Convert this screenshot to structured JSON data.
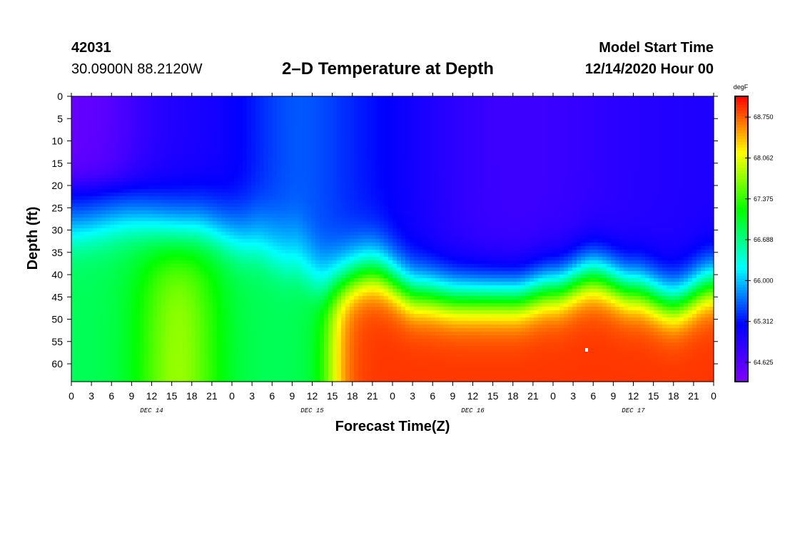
{
  "header": {
    "station_id": "42031",
    "location": "30.0900N 88.2120W",
    "title": "2–D Temperature at Depth",
    "start_label": "Model Start Time",
    "start_value": "12/14/2020 Hour 00"
  },
  "chart_data": {
    "type": "heatmap",
    "title": "2–D Temperature at Depth",
    "xlabel": "Forecast Time(Z)",
    "ylabel": "Depth (ft)",
    "x_range_hours": [
      0,
      96
    ],
    "y_range_ft": [
      0,
      64
    ],
    "x_tick_step_hours": 3,
    "x_tick_labels": [
      "0",
      "3",
      "6",
      "9",
      "12",
      "15",
      "18",
      "21",
      "0",
      "3",
      "6",
      "9",
      "12",
      "15",
      "18",
      "21",
      "0",
      "3",
      "6",
      "9",
      "12",
      "15",
      "18",
      "21",
      "0",
      "3",
      "6",
      "9",
      "12",
      "15",
      "18",
      "21",
      "0"
    ],
    "y_ticks": [
      0,
      5,
      10,
      15,
      20,
      25,
      30,
      35,
      40,
      45,
      50,
      55,
      60
    ],
    "date_labels": [
      {
        "label": "DEC 14",
        "hour": 12
      },
      {
        "label": "DEC 15",
        "hour": 36
      },
      {
        "label": "DEC 16",
        "hour": 60
      },
      {
        "label": "DEC 17",
        "hour": 84
      }
    ],
    "colorbar": {
      "unit": "degF",
      "min": 64.3,
      "max": 69.1,
      "tick_labels": [
        "68.750",
        "68.062",
        "67.375",
        "66.688",
        "66.000",
        "65.312",
        "64.625"
      ],
      "tick_values": [
        68.75,
        68.062,
        67.375,
        66.688,
        66.0,
        65.312,
        64.625
      ],
      "colors": [
        "#8000ff",
        "#0000ff",
        "#00ffff",
        "#00ff00",
        "#ffff00",
        "#ff0000"
      ]
    },
    "thermocline_depth_ft": [
      {
        "hour": 0,
        "depth": 29
      },
      {
        "hour": 9,
        "depth": 27
      },
      {
        "hour": 18,
        "depth": 28
      },
      {
        "hour": 27,
        "depth": 32
      },
      {
        "hour": 33,
        "depth": 36
      },
      {
        "hour": 38,
        "depth": 42
      },
      {
        "hour": 45,
        "depth": 39
      },
      {
        "hour": 52,
        "depth": 44
      },
      {
        "hour": 58,
        "depth": 45
      },
      {
        "hour": 66,
        "depth": 45
      },
      {
        "hour": 72,
        "depth": 43
      },
      {
        "hour": 78,
        "depth": 40
      },
      {
        "hour": 84,
        "depth": 43
      },
      {
        "hour": 90,
        "depth": 46
      },
      {
        "hour": 96,
        "depth": 42
      }
    ],
    "warm_core_peak_degF": 69.0,
    "cold_corner_degF": 64.5
  }
}
